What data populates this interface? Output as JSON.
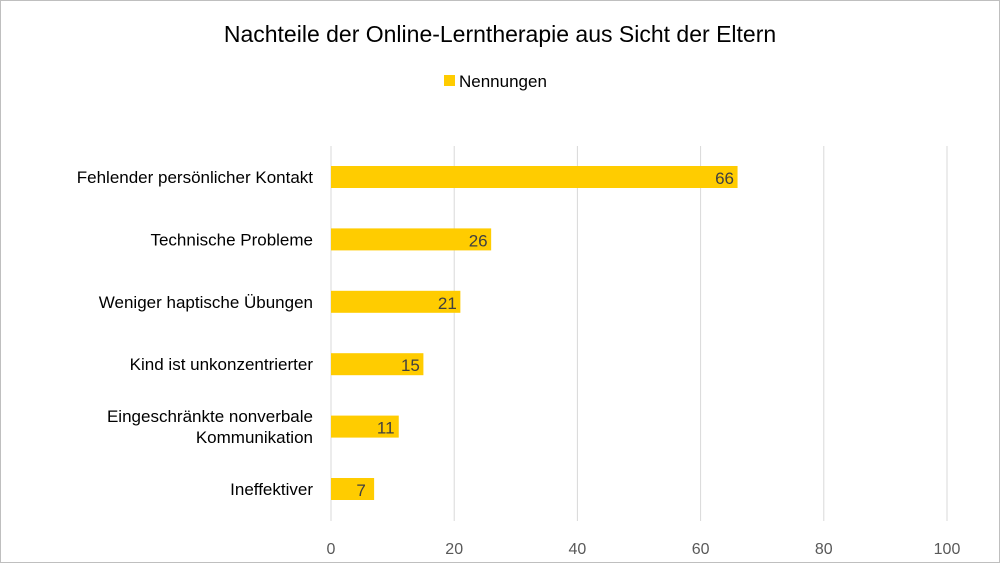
{
  "chart_data": {
    "type": "bar",
    "orientation": "horizontal",
    "title": "Nachteile der Online-Lerntherapie aus Sicht der Eltern",
    "legend_position": "top",
    "categories": [
      [
        "Fehlender persönlicher Kontakt"
      ],
      [
        "Technische Probleme"
      ],
      [
        "Weniger haptische Übungen"
      ],
      [
        "Kind ist unkonzentrierter"
      ],
      [
        "Eingeschränkte nonverbale",
        "Kommunikation"
      ],
      [
        "Ineffektiver"
      ]
    ],
    "series": [
      {
        "name": "Nennungen",
        "values": [
          66,
          26,
          21,
          15,
          11,
          7
        ],
        "color": "#FFCC00"
      }
    ],
    "xlim": [
      0,
      100
    ],
    "xticks": [
      0,
      20,
      40,
      60,
      80,
      100
    ],
    "grid": true,
    "gridline_color": "#d9d9d9",
    "data_labels": true
  }
}
